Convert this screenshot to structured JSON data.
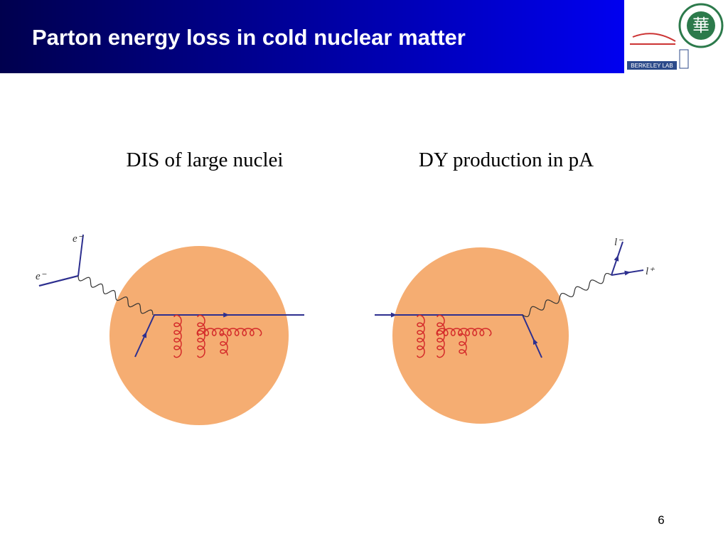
{
  "header": {
    "title": "Parton energy loss in cold nuclear matter",
    "logo_lab": "BERKELEY LAB",
    "logo_university": "華"
  },
  "panels": [
    {
      "caption": "DIS of large nuclei",
      "labels": [
        "e⁻",
        "e⁻"
      ]
    },
    {
      "caption": "DY production in pA",
      "labels": [
        "l⁻",
        "l⁺"
      ]
    }
  ],
  "page_number": "6"
}
